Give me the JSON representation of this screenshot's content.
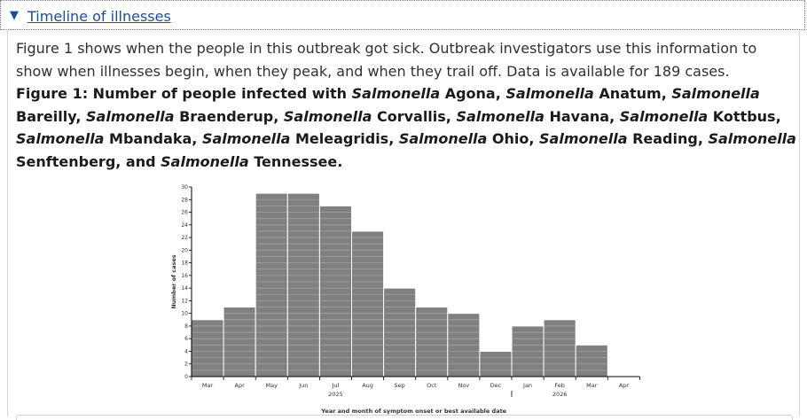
{
  "accordion": {
    "caret": "▼",
    "title": "Timeline of illnesses"
  },
  "intro_text": "Figure 1 shows when the people in this outbreak got sick. Outbreak investigators use this information to show when illnesses begin, when they peak, and when they trail off. Data is available for 189 cases.",
  "figure_title": {
    "prefix": "Figure 1: Number of people infected with",
    "genus": "Salmonella",
    "serotypes": [
      "Agona",
      "Anatum",
      "Bareilly",
      "Braenderup",
      "Corvallis",
      "Havana",
      "Kottbus",
      "Mbandaka",
      "Meleagridis",
      "Ohio",
      "Reading",
      "Senftenberg",
      "Tennessee"
    ],
    "final_conjunction": "and",
    "end": "."
  },
  "chart_data": {
    "type": "bar",
    "categories": [
      "Mar",
      "Apr",
      "May",
      "Jun",
      "Jul",
      "Aug",
      "Sep",
      "Oct",
      "Nov",
      "Dec",
      "Jan",
      "Feb",
      "Mar",
      "Apr"
    ],
    "values": [
      9,
      11,
      29,
      29,
      27,
      23,
      14,
      11,
      10,
      4,
      8,
      9,
      5,
      0
    ],
    "year_labels": [
      {
        "category_index": 4,
        "year": "2025"
      },
      {
        "category_index": 11,
        "year": "2026"
      }
    ],
    "year_boundary_after_index": 9,
    "xlabel": "Year and month of symptom onset or best available date",
    "ylabel": "Number of cases",
    "ylim": [
      0,
      30
    ],
    "ytick_step": 2,
    "bar_color": "#808080",
    "unit_line_color": "#a3a3a3",
    "grid": false
  }
}
